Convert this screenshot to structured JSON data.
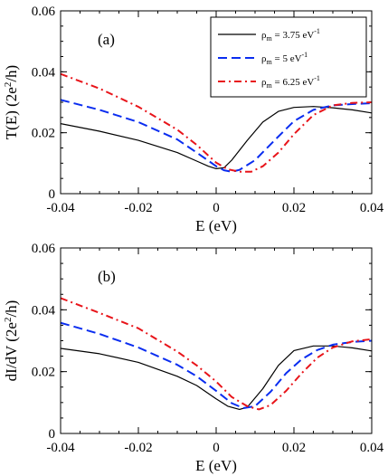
{
  "chart_data": [
    {
      "type": "line",
      "panel_label": "(a)",
      "xlabel": "E (eV)",
      "ylabel_main": "T(E) (2e",
      "ylabel_sup": "2",
      "ylabel_end": "/h)",
      "xlim": [
        -0.04,
        0.04
      ],
      "ylim": [
        0,
        0.06
      ],
      "xticks": [
        -0.04,
        -0.02,
        0,
        0.02,
        0.04
      ],
      "xtick_labels": [
        "-0.04",
        "-0.02",
        "0",
        "0.02",
        "0.04"
      ],
      "yticks": [
        0,
        0.02,
        0.04,
        0.06
      ],
      "ytick_labels": [
        "0",
        "0.02",
        "0.04",
        "0.06"
      ],
      "legend_position": "top-right",
      "series": [
        {
          "legend_prefix": "ρ",
          "legend_sub": "m",
          "legend_value": " = 3.75 eV",
          "legend_sup": "-1",
          "color": "#000000",
          "dash": "solid",
          "x": [
            -0.04,
            -0.03,
            -0.02,
            -0.01,
            -0.005,
            -0.002,
            0.0,
            0.002,
            0.004,
            0.008,
            0.012,
            0.016,
            0.02,
            0.025,
            0.03,
            0.035,
            0.04
          ],
          "y": [
            0.023,
            0.0205,
            0.0175,
            0.0135,
            0.0107,
            0.009,
            0.0082,
            0.0085,
            0.011,
            0.0175,
            0.0235,
            0.027,
            0.0283,
            0.0286,
            0.0282,
            0.0275,
            0.0265
          ]
        },
        {
          "legend_prefix": "ρ",
          "legend_sub": "m",
          "legend_value": " = 5 eV",
          "legend_sup": "-1",
          "color": "#0a2df0",
          "dash": "long",
          "x": [
            -0.04,
            -0.03,
            -0.02,
            -0.01,
            -0.005,
            -0.002,
            0.0,
            0.002,
            0.004,
            0.006,
            0.01,
            0.015,
            0.02,
            0.025,
            0.03,
            0.035,
            0.04
          ],
          "y": [
            0.0308,
            0.0275,
            0.0235,
            0.0178,
            0.0135,
            0.0108,
            0.009,
            0.0077,
            0.0072,
            0.0078,
            0.011,
            0.0175,
            0.0238,
            0.0275,
            0.029,
            0.0294,
            0.0297
          ]
        },
        {
          "legend_prefix": "ρ",
          "legend_sub": "m",
          "legend_value": " = 6.25 eV",
          "legend_sup": "-1",
          "color": "#e8141a",
          "dash": "dashdot",
          "x": [
            -0.04,
            -0.03,
            -0.02,
            -0.01,
            -0.005,
            -0.002,
            0.0,
            0.003,
            0.006,
            0.009,
            0.012,
            0.016,
            0.02,
            0.025,
            0.03,
            0.035,
            0.04
          ],
          "y": [
            0.0393,
            0.0345,
            0.0285,
            0.021,
            0.016,
            0.0125,
            0.0102,
            0.008,
            0.0072,
            0.0072,
            0.009,
            0.0135,
            0.0195,
            0.0258,
            0.029,
            0.0298,
            0.03
          ]
        }
      ]
    },
    {
      "type": "line",
      "panel_label": "(b)",
      "xlabel": "E (eV)",
      "ylabel_main": "dI/dV (2e",
      "ylabel_sup": "2",
      "ylabel_end": "/h)",
      "xlim": [
        -0.04,
        0.04
      ],
      "ylim": [
        0,
        0.06
      ],
      "xticks": [
        -0.04,
        -0.02,
        0,
        0.02,
        0.04
      ],
      "xtick_labels": [
        "-0.04",
        "-0.02",
        "0",
        "0.02",
        "0.04"
      ],
      "yticks": [
        0,
        0.02,
        0.04,
        0.06
      ],
      "ytick_labels": [
        "0",
        "0.02",
        "0.04",
        "0.06"
      ],
      "series": [
        {
          "color": "#000000",
          "dash": "solid",
          "x": [
            -0.04,
            -0.03,
            -0.02,
            -0.01,
            -0.005,
            0.0,
            0.003,
            0.006,
            0.008,
            0.012,
            0.016,
            0.02,
            0.025,
            0.03,
            0.035,
            0.04
          ],
          "y": [
            0.0275,
            0.0258,
            0.023,
            0.0185,
            0.0155,
            0.0112,
            0.0088,
            0.0078,
            0.0085,
            0.0145,
            0.022,
            0.0268,
            0.0283,
            0.0283,
            0.0277,
            0.0267
          ]
        },
        {
          "color": "#0a2df0",
          "dash": "long",
          "x": [
            -0.04,
            -0.03,
            -0.02,
            -0.01,
            -0.005,
            0.0,
            0.004,
            0.007,
            0.01,
            0.014,
            0.018,
            0.022,
            0.026,
            0.03,
            0.035,
            0.04
          ],
          "y": [
            0.0358,
            0.0322,
            0.0278,
            0.0222,
            0.0185,
            0.0138,
            0.0098,
            0.0082,
            0.0088,
            0.0135,
            0.0195,
            0.024,
            0.027,
            0.0287,
            0.0296,
            0.03
          ]
        },
        {
          "color": "#e8141a",
          "dash": "dashdot",
          "x": [
            -0.04,
            -0.03,
            -0.02,
            -0.01,
            -0.005,
            0.0,
            0.004,
            0.008,
            0.011,
            0.014,
            0.018,
            0.022,
            0.026,
            0.03,
            0.035,
            0.04
          ],
          "y": [
            0.0438,
            0.039,
            0.034,
            0.0265,
            0.022,
            0.0168,
            0.0118,
            0.0088,
            0.0078,
            0.0092,
            0.0138,
            0.0195,
            0.0245,
            0.0278,
            0.0298,
            0.0305
          ]
        }
      ]
    }
  ]
}
